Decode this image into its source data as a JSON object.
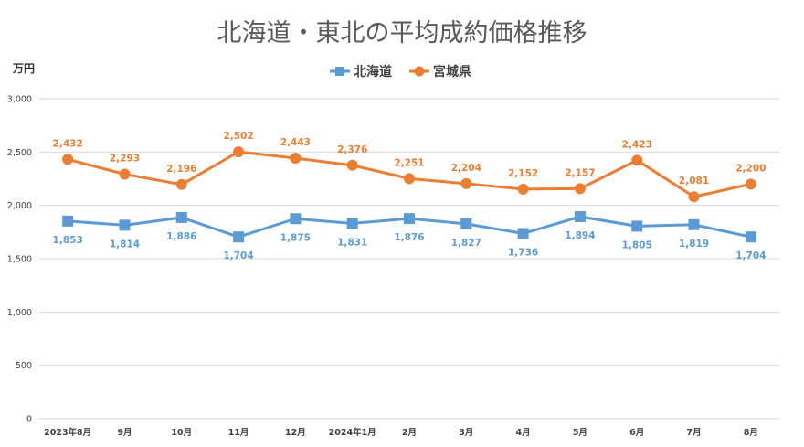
{
  "chart_data": {
    "type": "line",
    "title": "北海道・東北の平均成約価格推移",
    "ylabel": "万円",
    "xlabel": "",
    "ylim": [
      0,
      3000
    ],
    "yticks": [
      "0",
      "500",
      "1,000",
      "1,500",
      "2,000",
      "2,500",
      "3,000"
    ],
    "ytick_values": [
      0,
      500,
      1000,
      1500,
      2000,
      2500,
      3000
    ],
    "grid": true,
    "legend_position": "top",
    "categories": [
      "2023年8月",
      "9月",
      "10月",
      "11月",
      "12月",
      "2024年1月",
      "2月",
      "3月",
      "4月",
      "5月",
      "6月",
      "7月",
      "8月"
    ],
    "series": [
      {
        "name": "北海道",
        "color": "#5b9bd5",
        "marker": "square",
        "values": [
          1853,
          1814,
          1886,
          1704,
          1875,
          1831,
          1876,
          1827,
          1736,
          1894,
          1805,
          1819,
          1704
        ],
        "labels": [
          "1,853",
          "1,814",
          "1,886",
          "1,704",
          "1,875",
          "1,831",
          "1,876",
          "1,827",
          "1,736",
          "1,894",
          "1,805",
          "1,819",
          "1,704"
        ]
      },
      {
        "name": "宮城県",
        "color": "#ed7d31",
        "marker": "circle",
        "values": [
          2432,
          2293,
          2196,
          2502,
          2443,
          2376,
          2251,
          2204,
          2152,
          2157,
          2423,
          2081,
          2200
        ],
        "labels": [
          "2,432",
          "2,293",
          "2,196",
          "2,502",
          "2,443",
          "2,376",
          "2,251",
          "2,204",
          "2,152",
          "2,157",
          "2,423",
          "2,081",
          "2,200"
        ]
      }
    ]
  }
}
